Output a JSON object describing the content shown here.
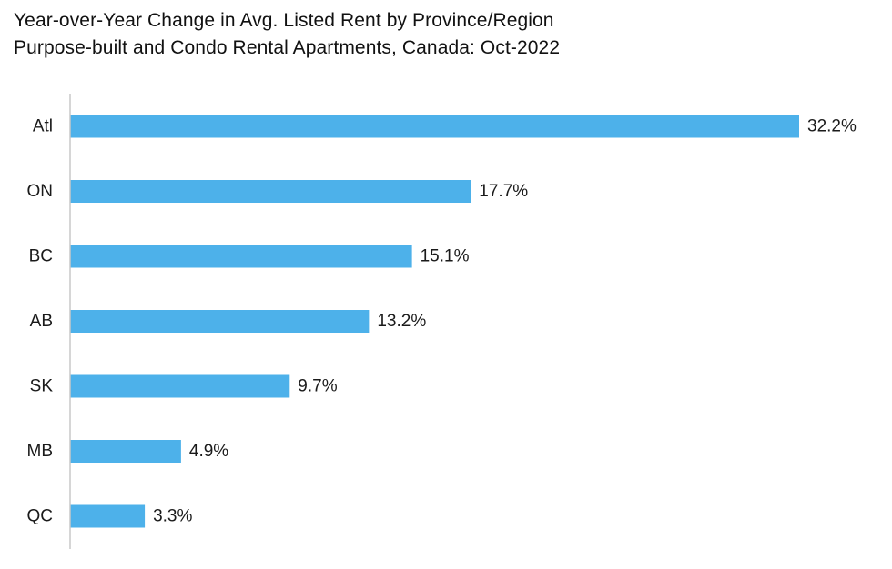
{
  "chart_data": {
    "type": "bar",
    "orientation": "horizontal",
    "title": "Year-over-Year Change in Avg. Listed Rent by Province/Region",
    "subtitle": "Purpose-built and Condo Rental Apartments, Canada: Oct-2022",
    "categories": [
      "Atl",
      "ON",
      "BC",
      "AB",
      "SK",
      "MB",
      "QC"
    ],
    "values": [
      32.2,
      17.7,
      15.1,
      13.2,
      9.7,
      4.9,
      3.3
    ],
    "value_labels": [
      "32.2%",
      "17.7%",
      "15.1%",
      "13.2%",
      "9.7%",
      "4.9%",
      "3.3%"
    ],
    "xlabel": "",
    "ylabel": "",
    "xlim": [
      0,
      32.2
    ],
    "grid": false,
    "legend": "none",
    "bar_color": "#4db1ea",
    "axis_color": "#c8c8c8"
  }
}
